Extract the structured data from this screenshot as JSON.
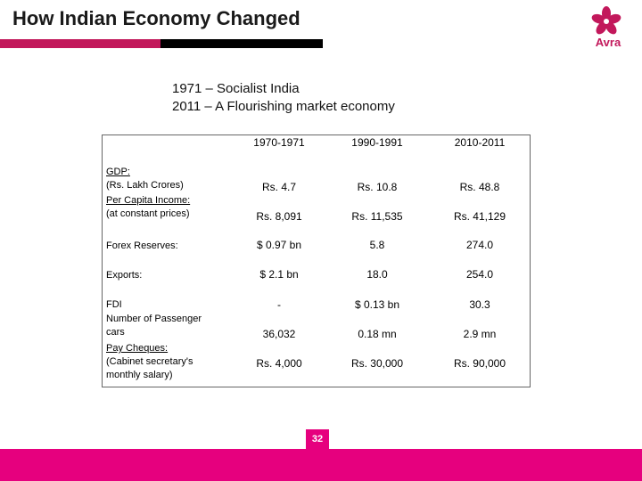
{
  "slide": {
    "title": "How Indian Economy Changed",
    "brand": "Avra",
    "subtitle_line1": "1971 – Socialist India",
    "subtitle_line2": "2011 – A Flourishing market economy",
    "page_number": "32",
    "colors": {
      "accent": "#c2185b",
      "footer": "#e6007e"
    },
    "logo_icon": "flower-icon"
  },
  "table": {
    "headers": [
      "1970-1971",
      "1990-1991",
      "2010-2011"
    ],
    "rows": [
      {
        "label": [
          "GDP:",
          "(Rs. Lakh Crores)"
        ],
        "values": [
          "Rs. 4.7",
          "Rs. 10.8",
          "Rs. 48.8"
        ]
      },
      {
        "label": [
          "Per Capita Income:",
          "(at constant prices)"
        ],
        "values": [
          "Rs. 8,091",
          "Rs. 11,535",
          "Rs. 41,129"
        ]
      },
      {
        "label": [
          "Forex Reserves:"
        ],
        "values": [
          "$ 0.97 bn",
          "5.8",
          "274.0"
        ]
      },
      {
        "label": [
          "Exports:"
        ],
        "values": [
          "$ 2.1 bn",
          "18.0",
          "254.0"
        ]
      },
      {
        "label": [
          "FDI"
        ],
        "values": [
          "-",
          "$ 0.13 bn",
          "30.3"
        ]
      },
      {
        "label": [
          "Number of Passenger",
          "cars"
        ],
        "values": [
          "36,032",
          "0.18 mn",
          "2.9 mn"
        ]
      },
      {
        "label": [
          "Pay Cheques:",
          "(Cabinet secretary's",
          "monthly salary)"
        ],
        "values": [
          "Rs. 4,000",
          "Rs. 30,000",
          "Rs. 90,000"
        ]
      }
    ]
  }
}
